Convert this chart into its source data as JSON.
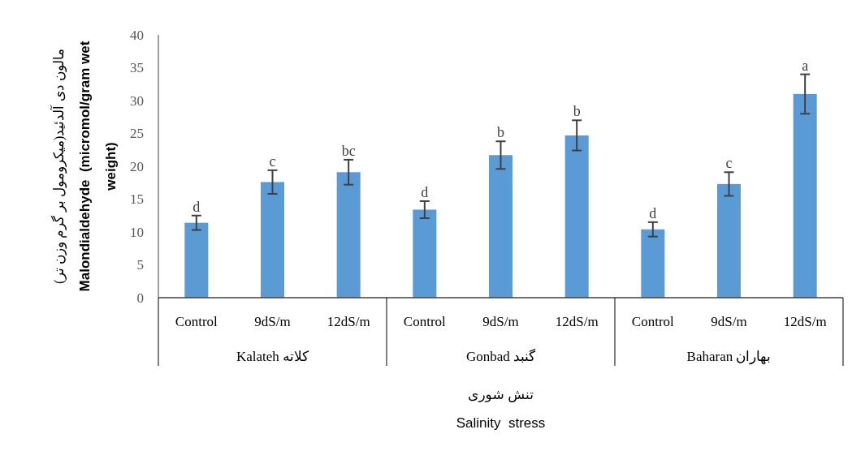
{
  "chart_data": {
    "type": "bar",
    "categories": [
      "Control",
      "9dS/m",
      "12dS/m",
      "Control",
      "9dS/m",
      "12dS/m",
      "Control",
      "9dS/m",
      "12dS/m"
    ],
    "values": [
      11.4,
      17.6,
      19.1,
      13.4,
      21.7,
      24.7,
      10.4,
      17.3,
      31.0
    ],
    "errors": [
      1.1,
      1.8,
      1.9,
      1.3,
      2.1,
      2.3,
      1.1,
      1.8,
      3.0
    ],
    "value_labels": [
      "d",
      "c",
      "bc",
      "d",
      "b",
      "b",
      "d",
      "c",
      "a"
    ],
    "color": "#5b9bd5",
    "ylim": [
      0,
      40
    ],
    "yticks": [
      0,
      5,
      10,
      15,
      20,
      25,
      30,
      35,
      40
    ],
    "xlabel": "تنش شوری\nSalinity  stress",
    "ylabel": "مالون دی آلدئید(میکرومول بر گرم وزن تر)\nMalondialdehyde  (micromol/gram wet\nweight)",
    "annotations": [
      "Kalateh کلاته",
      "Gonbad گنبد",
      "Baharan بهاران"
    ],
    "grid": false
  }
}
